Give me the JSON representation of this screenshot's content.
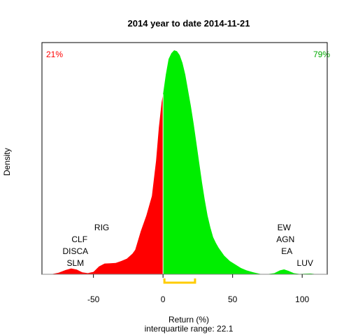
{
  "chart_data": {
    "type": "area",
    "title": "2014  year to date 2014-11-21",
    "xlabel": "Return (%)",
    "xlabel_sub": "interquartile range: 22.1",
    "ylabel": "Density",
    "xlim": [
      -87,
      118
    ],
    "xticks": [
      -50,
      0,
      50,
      100
    ],
    "xtick_labels": [
      "-50",
      "0",
      "50",
      "100"
    ],
    "split_at": 0,
    "pct_negative": "21%",
    "pct_positive": "79%",
    "negative_color": "#ff0000",
    "positive_color": "#00ee00",
    "iqr_color": "#ffcc00",
    "iqr_range": [
      1,
      23
    ],
    "density": {
      "x": [
        -85,
        -80,
        -75,
        -70,
        -66,
        -62,
        -58,
        -54,
        -50,
        -46,
        -42,
        -38,
        -34,
        -30,
        -26,
        -22,
        -20,
        -16,
        -12,
        -8,
        -5,
        -3,
        -1,
        0,
        2,
        4,
        6,
        8,
        10,
        12,
        14,
        16,
        18,
        20,
        22,
        24,
        26,
        28,
        30,
        32,
        34,
        36,
        38,
        40,
        42,
        44,
        48,
        52,
        56,
        60,
        65,
        70,
        75,
        80,
        84,
        87,
        90,
        94,
        98,
        102,
        106,
        110,
        115
      ],
      "y": [
        0,
        0.1,
        0.8,
        2.2,
        3.0,
        2.4,
        1.0,
        0.6,
        1.2,
        4.0,
        5.5,
        5.6,
        5.8,
        6.8,
        8.0,
        10.5,
        12.5,
        22.0,
        30.0,
        40.0,
        58.0,
        75.0,
        88.0,
        92.0,
        102.0,
        110.0,
        113.0,
        114.5,
        114.0,
        112.0,
        108.0,
        102.0,
        94.0,
        86.0,
        77.0,
        67.0,
        57.0,
        47.0,
        38.0,
        30.0,
        24.0,
        19.0,
        16.0,
        13.5,
        11.5,
        9.5,
        6.8,
        5.0,
        3.2,
        2.0,
        1.0,
        0.2,
        0.1,
        0.6,
        2.0,
        2.5,
        1.8,
        0.6,
        0.2,
        0.3,
        0.4,
        0.1,
        0
      ]
    },
    "annotations": [
      {
        "text": "SLM",
        "x": -63,
        "row": 0
      },
      {
        "text": "DISCA",
        "x": -63,
        "row": 1
      },
      {
        "text": "CLF",
        "x": -60,
        "row": 2
      },
      {
        "text": "RIG",
        "x": -44,
        "row": 3
      },
      {
        "text": "LUV",
        "x": 102,
        "row": 0
      },
      {
        "text": "EA",
        "x": 89,
        "row": 1
      },
      {
        "text": "AGN",
        "x": 88,
        "row": 2
      },
      {
        "text": "EW",
        "x": 87,
        "row": 3
      }
    ]
  }
}
